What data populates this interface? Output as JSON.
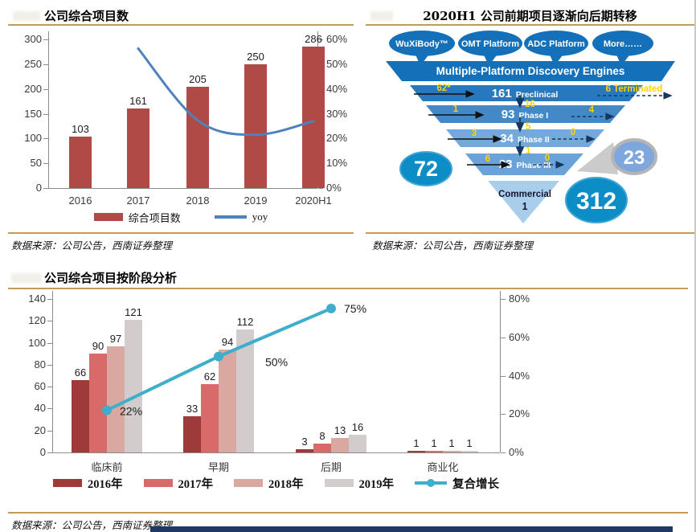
{
  "source_note": "数据来源：公司公告，西南证券整理",
  "colors": {
    "accent_gold": "#c49a5b",
    "footer_bar": "#1f3864",
    "chart1_bar": "#b04a47",
    "chart1_line": "#4f81bd",
    "funnel_blue": "#1470b8",
    "funnel_rows": [
      "#2878be",
      "#4389c7",
      "#74a9db",
      "#6aa3d9"
    ],
    "funnel_triangle": "#a9ceec",
    "badge_teal": "#0c8dc5",
    "badge_light": "#7ea7dd",
    "chart3_line": "#3faecc"
  },
  "funnel": {
    "title": "2020H1 公司前期项目逐渐向后期转移",
    "platforms": [
      "WuXiBody™",
      "OMT Platform",
      "ADC Platform",
      "More……"
    ],
    "engine": "Multiple-Platform Discovery Engines",
    "rows": [
      {
        "count": "161",
        "stage": "Preclinical",
        "inflow": "62*",
        "outflow": "6 Terminated",
        "down": "16"
      },
      {
        "count": "93",
        "stage": "Phase I",
        "inflow": "1",
        "outflow": "4",
        "down": "5"
      },
      {
        "count": "34",
        "stage": "Phase II",
        "inflow": "3",
        "outflow": "0",
        "down": "1"
      },
      {
        "count": "23",
        "stage": "Phase III",
        "inflow": "6",
        "outflow": "0"
      }
    ],
    "commercial": {
      "label": "Commercial",
      "value": "1"
    },
    "badges": {
      "active_total": "72",
      "phase3_callout": "23",
      "overall_total": "312"
    }
  },
  "chart_data": [
    {
      "type": "bar+line",
      "title": "公司综合项目数",
      "categories": [
        "2016",
        "2017",
        "2018",
        "2019",
        "2020H1"
      ],
      "series": [
        {
          "name": "综合项目数",
          "values": [
            103,
            161,
            205,
            250,
            286
          ],
          "color": "#b04a47"
        }
      ],
      "line": {
        "name": "yoy",
        "x": [
          "2017",
          "2018",
          "2019",
          "2020H1"
        ],
        "values": [
          56.3,
          27.3,
          21.5,
          27.0
        ],
        "color": "#4f81bd"
      },
      "left_axis": {
        "min": 0,
        "max": 300,
        "step": 50
      },
      "right_axis": {
        "min": 0,
        "max": 60,
        "step": 10,
        "format": "%"
      },
      "legend_position": "bottom"
    },
    {
      "type": "bar+line",
      "title": "公司综合项目按阶段分析",
      "categories": [
        "临床前",
        "早期",
        "后期",
        "商业化"
      ],
      "series": [
        {
          "name": "2016年",
          "values": [
            66,
            33,
            3,
            1
          ],
          "color": "#9e3a3a"
        },
        {
          "name": "2017年",
          "values": [
            90,
            62,
            8,
            1
          ],
          "color": "#d96a6a"
        },
        {
          "name": "2018年",
          "values": [
            97,
            94,
            13,
            1
          ],
          "color": "#d9a8a1"
        },
        {
          "name": "2019年",
          "values": [
            121,
            112,
            16,
            1
          ],
          "color": "#d2cccc"
        }
      ],
      "line": {
        "name": "复合增长",
        "x": [
          "临床前",
          "早期",
          "后期"
        ],
        "values": [
          22,
          50,
          75
        ],
        "labels": [
          "22%",
          "50%",
          "75%"
        ],
        "color": "#3faecc"
      },
      "left_axis": {
        "min": 0,
        "max": 140,
        "step": 20
      },
      "right_axis": {
        "min": 0,
        "max": 80,
        "step": 20,
        "format": "%"
      },
      "legend_position": "bottom"
    }
  ]
}
